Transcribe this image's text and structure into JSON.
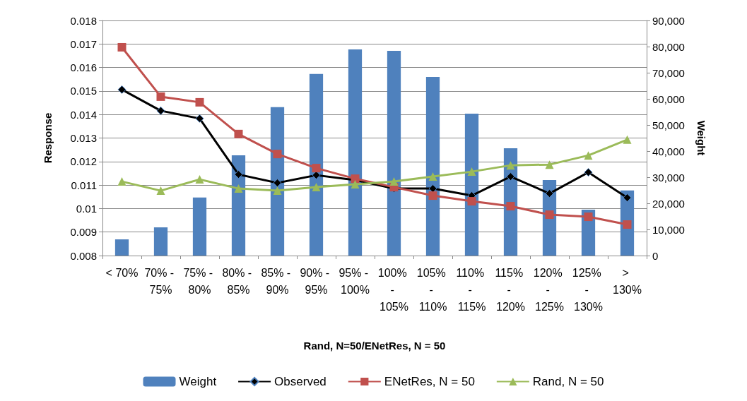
{
  "chart_data": {
    "type": "bar",
    "xlabel": "Rand, N=50/ENetRes, N = 50",
    "ylabel": "Response",
    "y2label": "Weight",
    "categories": [
      "< 70%",
      "70% - 75%",
      "75% - 80%",
      "80% - 85%",
      "85% - 90%",
      "90% - 95%",
      "95% - 100%",
      "100% - 105%",
      "105% - 110%",
      "110% - 115%",
      "115% - 120%",
      "120% - 125%",
      "125% - 130%",
      "> 130%"
    ],
    "series": [
      {
        "name": "Weight",
        "axis": "y2",
        "color": "#4f81bd",
        "values": [
          6200,
          10800,
          22200,
          38400,
          56800,
          69500,
          78900,
          78400,
          68400,
          54300,
          41100,
          28900,
          17600,
          24900
        ]
      },
      {
        "name": "Observed",
        "type": "line",
        "color": "#000000",
        "marker": "diamond",
        "values": [
          0.01506,
          0.01416,
          0.01383,
          0.01145,
          0.01109,
          0.01142,
          0.01121,
          0.01085,
          0.01085,
          0.01055,
          0.01136,
          0.01064,
          0.01154,
          0.01046
        ]
      },
      {
        "name": "ENetRes, N = 50",
        "type": "line",
        "color": "#c0504d",
        "marker": "square",
        "values": [
          0.01686,
          0.01476,
          0.01452,
          0.01317,
          0.01232,
          0.01172,
          0.01127,
          0.01091,
          0.01055,
          0.01031,
          0.0101,
          0.00974,
          0.00965,
          0.00932
        ]
      },
      {
        "name": "Rand, N = 50",
        "type": "line",
        "color": "#9bbb59",
        "marker": "triangle",
        "values": [
          0.01115,
          0.01076,
          0.01124,
          0.01085,
          0.01076,
          0.01091,
          0.01103,
          0.01115,
          0.01136,
          0.01157,
          0.01184,
          0.01187,
          0.01226,
          0.01293
        ]
      }
    ],
    "ylim": [
      0.008,
      0.018
    ],
    "yticks": [
      0.008,
      0.009,
      0.01,
      0.011,
      0.012,
      0.013,
      0.014,
      0.015,
      0.016,
      0.017,
      0.018
    ],
    "y2lim": [
      0,
      90000
    ],
    "y2ticks": [
      0,
      {
        "value": 10000,
        "label": "10,000"
      },
      {
        "value": 20000,
        "label": "20,000"
      },
      {
        "value": 30000,
        "label": "30,000"
      },
      {
        "value": 40000,
        "label": "40,000"
      },
      {
        "value": 50000,
        "label": "50,000"
      },
      {
        "value": 60000,
        "label": "60,000"
      },
      {
        "value": 70000,
        "label": "70,000"
      },
      {
        "value": 80000,
        "label": "80,000"
      },
      {
        "value": 90000,
        "label": "90,000"
      }
    ],
    "grid": "y",
    "legend": "bottom"
  }
}
